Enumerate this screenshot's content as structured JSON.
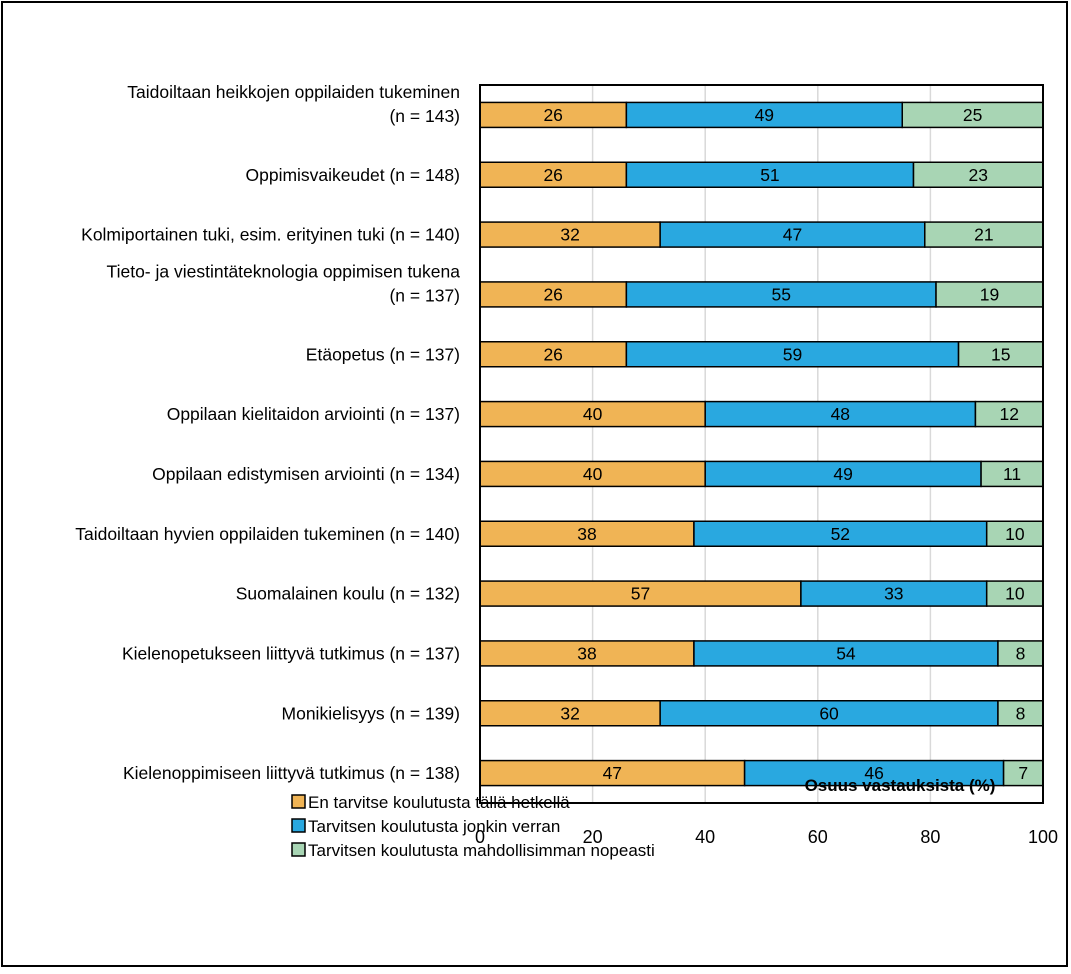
{
  "chart_data": {
    "type": "bar",
    "orientation": "horizontal",
    "stacked": true,
    "categories": [
      [
        "Taidoiltaan heikkojen oppilaiden tukeminen",
        "(n = 143)"
      ],
      [
        "Oppimisvaikeudet (n = 148)"
      ],
      [
        "Kolmiportainen tuki, esim. erityinen tuki (n = 140)"
      ],
      [
        "Tieto- ja viestintäteknologia oppimisen tukena",
        "(n = 137)"
      ],
      [
        "Etäopetus (n = 137)"
      ],
      [
        "Oppilaan kielitaidon arviointi (n = 137)"
      ],
      [
        "Oppilaan edistymisen arviointi (n = 134)"
      ],
      [
        "Taidoiltaan hyvien oppilaiden tukeminen (n = 140)"
      ],
      [
        "Suomalainen koulu (n = 132)"
      ],
      [
        "Kielenopetukseen liittyvä tutkimus (n = 137)"
      ],
      [
        "Monikielisyys (n = 139)"
      ],
      [
        "Kielenoppimiseen liittyvä tutkimus (n = 138)"
      ]
    ],
    "series": [
      {
        "name": "En tarvitse koulutusta tällä hetkellä",
        "color": "#F0B455",
        "values": [
          26,
          26,
          32,
          26,
          26,
          40,
          40,
          38,
          57,
          38,
          32,
          47
        ]
      },
      {
        "name": "Tarvitsen koulutusta jonkin verran",
        "color": "#29A8E0",
        "values": [
          49,
          51,
          47,
          55,
          59,
          48,
          49,
          52,
          33,
          54,
          60,
          46
        ]
      },
      {
        "name": "Tarvitsen koulutusta mahdollisimman nopeasti",
        "color": "#A8D5B4",
        "values": [
          25,
          23,
          21,
          19,
          15,
          12,
          11,
          10,
          10,
          8,
          8,
          7
        ]
      }
    ],
    "xlabel": "Osuus vastauksista (%)",
    "xlim": [
      0,
      100
    ],
    "xticks": [
      "0",
      "20",
      "40",
      "60",
      "80",
      "100"
    ],
    "grid": "vertical",
    "legend_position": "bottom-left"
  }
}
